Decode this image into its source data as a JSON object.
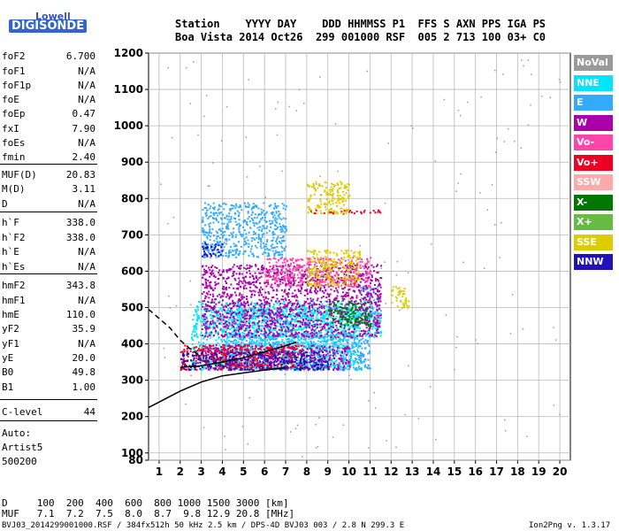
{
  "logo": {
    "line1": "Lowell",
    "line2": "DIGISONDE"
  },
  "header": {
    "line1": "Station    YYYY DAY    DDD HHMMSS P1  FFS S AXN PPS IGA PS",
    "line2": "Boa Vista 2014 Oct26  299 001000 RSF  005 2 713 100 03+ C0"
  },
  "params": [
    {
      "k": "foF2",
      "v": "6.700"
    },
    {
      "k": "foF1",
      "v": "N/A"
    },
    {
      "k": "foF1p",
      "v": "N/A"
    },
    {
      "k": "foE",
      "v": "N/A"
    },
    {
      "k": "foEp",
      "v": "0.47"
    },
    {
      "k": "fxI",
      "v": "7.90"
    },
    {
      "k": "foEs",
      "v": "N/A"
    },
    {
      "k": "fmin",
      "v": "2.40"
    },
    {
      "k": "MUF(D)",
      "v": "20.83"
    },
    {
      "k": "M(D)",
      "v": "3.11"
    },
    {
      "k": "D",
      "v": "N/A"
    },
    {
      "k": "h`F",
      "v": "338.0"
    },
    {
      "k": "h`F2",
      "v": "338.0"
    },
    {
      "k": "h`E",
      "v": "N/A"
    },
    {
      "k": "h`Es",
      "v": "N/A"
    },
    {
      "k": "hmF2",
      "v": "343.8"
    },
    {
      "k": "hmF1",
      "v": "N/A"
    },
    {
      "k": "hmE",
      "v": "110.0"
    },
    {
      "k": "yF2",
      "v": "35.9"
    },
    {
      "k": "yF1",
      "v": "N/A"
    },
    {
      "k": "yE",
      "v": "20.0"
    },
    {
      "k": "B0",
      "v": "49.8"
    },
    {
      "k": "B1",
      "v": "1.00"
    },
    {
      "k": "C-level",
      "v": "44"
    }
  ],
  "auto": {
    "line1": "Auto:",
    "line2": "Artist5",
    "line3": "500200"
  },
  "legend": [
    {
      "label": "NoVal",
      "color": "#9a9a9a"
    },
    {
      "label": "NNE",
      "color": "#00e5ff"
    },
    {
      "label": "E",
      "color": "#33aaff"
    },
    {
      "label": "W",
      "color": "#aa00aa"
    },
    {
      "label": "Vo-",
      "color": "#ff44aa"
    },
    {
      "label": "Vo+",
      "color": "#ee0022"
    },
    {
      "label": "SSW",
      "color": "#ffaaaa"
    },
    {
      "label": "X-",
      "color": "#007700"
    },
    {
      "label": "X+",
      "color": "#66bb44"
    },
    {
      "label": "SSE",
      "color": "#ddcc00"
    },
    {
      "label": "NNW",
      "color": "#2211bb"
    }
  ],
  "footer": {
    "d_row": "D     100  200  400  600  800 1000 1500 3000 [km]",
    "muf_row": "MUF   7.1  7.2  7.5  8.0  8.7  9.8 12.9 20.8 [MHz]",
    "file_info": "BVJ03_2014299001000.RSF / 384fx512h 50 kHz 2.5 km / DPS-4D BVJ03 003 / 2.8 N 299.3 E",
    "version": "Ion2Png v. 1.3.17"
  },
  "chart_data": {
    "type": "scatter",
    "xlim": [
      0.5,
      20.5
    ],
    "ylim": [
      80,
      1200
    ],
    "x_ticks": [
      1,
      2,
      3,
      4,
      5,
      6,
      7,
      8,
      9,
      10,
      11,
      12,
      13,
      14,
      15,
      16,
      17,
      18,
      19,
      20
    ],
    "y_ticks": [
      80,
      100,
      200,
      300,
      400,
      500,
      600,
      700,
      800,
      900,
      1000,
      1100,
      1200
    ],
    "grid": true,
    "series": [
      {
        "name": "NNE",
        "color": "#00e5ff",
        "regions": [
          [
            2.5,
            10.5,
            330,
            520
          ],
          [
            4,
            11.5,
            420,
            500
          ]
        ]
      },
      {
        "name": "E",
        "color": "#33aaff",
        "regions": [
          [
            3,
            7,
            640,
            790
          ],
          [
            4,
            11,
            330,
            430
          ],
          [
            10.5,
            11.5,
            450,
            560
          ]
        ]
      },
      {
        "name": "W",
        "color": "#aa00aa",
        "regions": [
          [
            3,
            11.5,
            420,
            620
          ],
          [
            3,
            10,
            330,
            400
          ]
        ]
      },
      {
        "name": "Vo-",
        "color": "#ff44aa",
        "regions": [
          [
            6,
            11,
            560,
            640
          ]
        ]
      },
      {
        "name": "Vo+",
        "color": "#ee0022",
        "regions": [
          [
            2,
            8,
            330,
            400
          ],
          [
            8,
            11.5,
            760,
            770
          ]
        ]
      },
      {
        "name": "X-",
        "color": "#007700",
        "regions": [
          [
            9,
            11,
            450,
            520
          ]
        ]
      },
      {
        "name": "SSE",
        "color": "#ddcc00",
        "regions": [
          [
            8,
            10.5,
            560,
            660
          ],
          [
            8,
            10,
            760,
            850
          ],
          [
            12,
            12.8,
            500,
            560
          ]
        ]
      },
      {
        "name": "NNW",
        "color": "#2211bb",
        "regions": [
          [
            2,
            9,
            330,
            380
          ],
          [
            3,
            4,
            640,
            680
          ]
        ]
      }
    ],
    "profile_curves": [
      {
        "style": "solid",
        "x": [
          0.5,
          1,
          2,
          3,
          4,
          5,
          6,
          7
        ],
        "y": [
          225,
          240,
          270,
          295,
          312,
          320,
          328,
          335
        ]
      },
      {
        "style": "dashed",
        "x": [
          0.5,
          1,
          1.5,
          2,
          2.5,
          3
        ],
        "y": [
          495,
          470,
          445,
          410,
          385,
          365
        ]
      },
      {
        "style": "solid",
        "x": [
          2,
          3,
          4,
          5,
          6,
          7,
          7.5
        ],
        "y": [
          335,
          340,
          350,
          362,
          378,
          395,
          405
        ]
      }
    ]
  }
}
